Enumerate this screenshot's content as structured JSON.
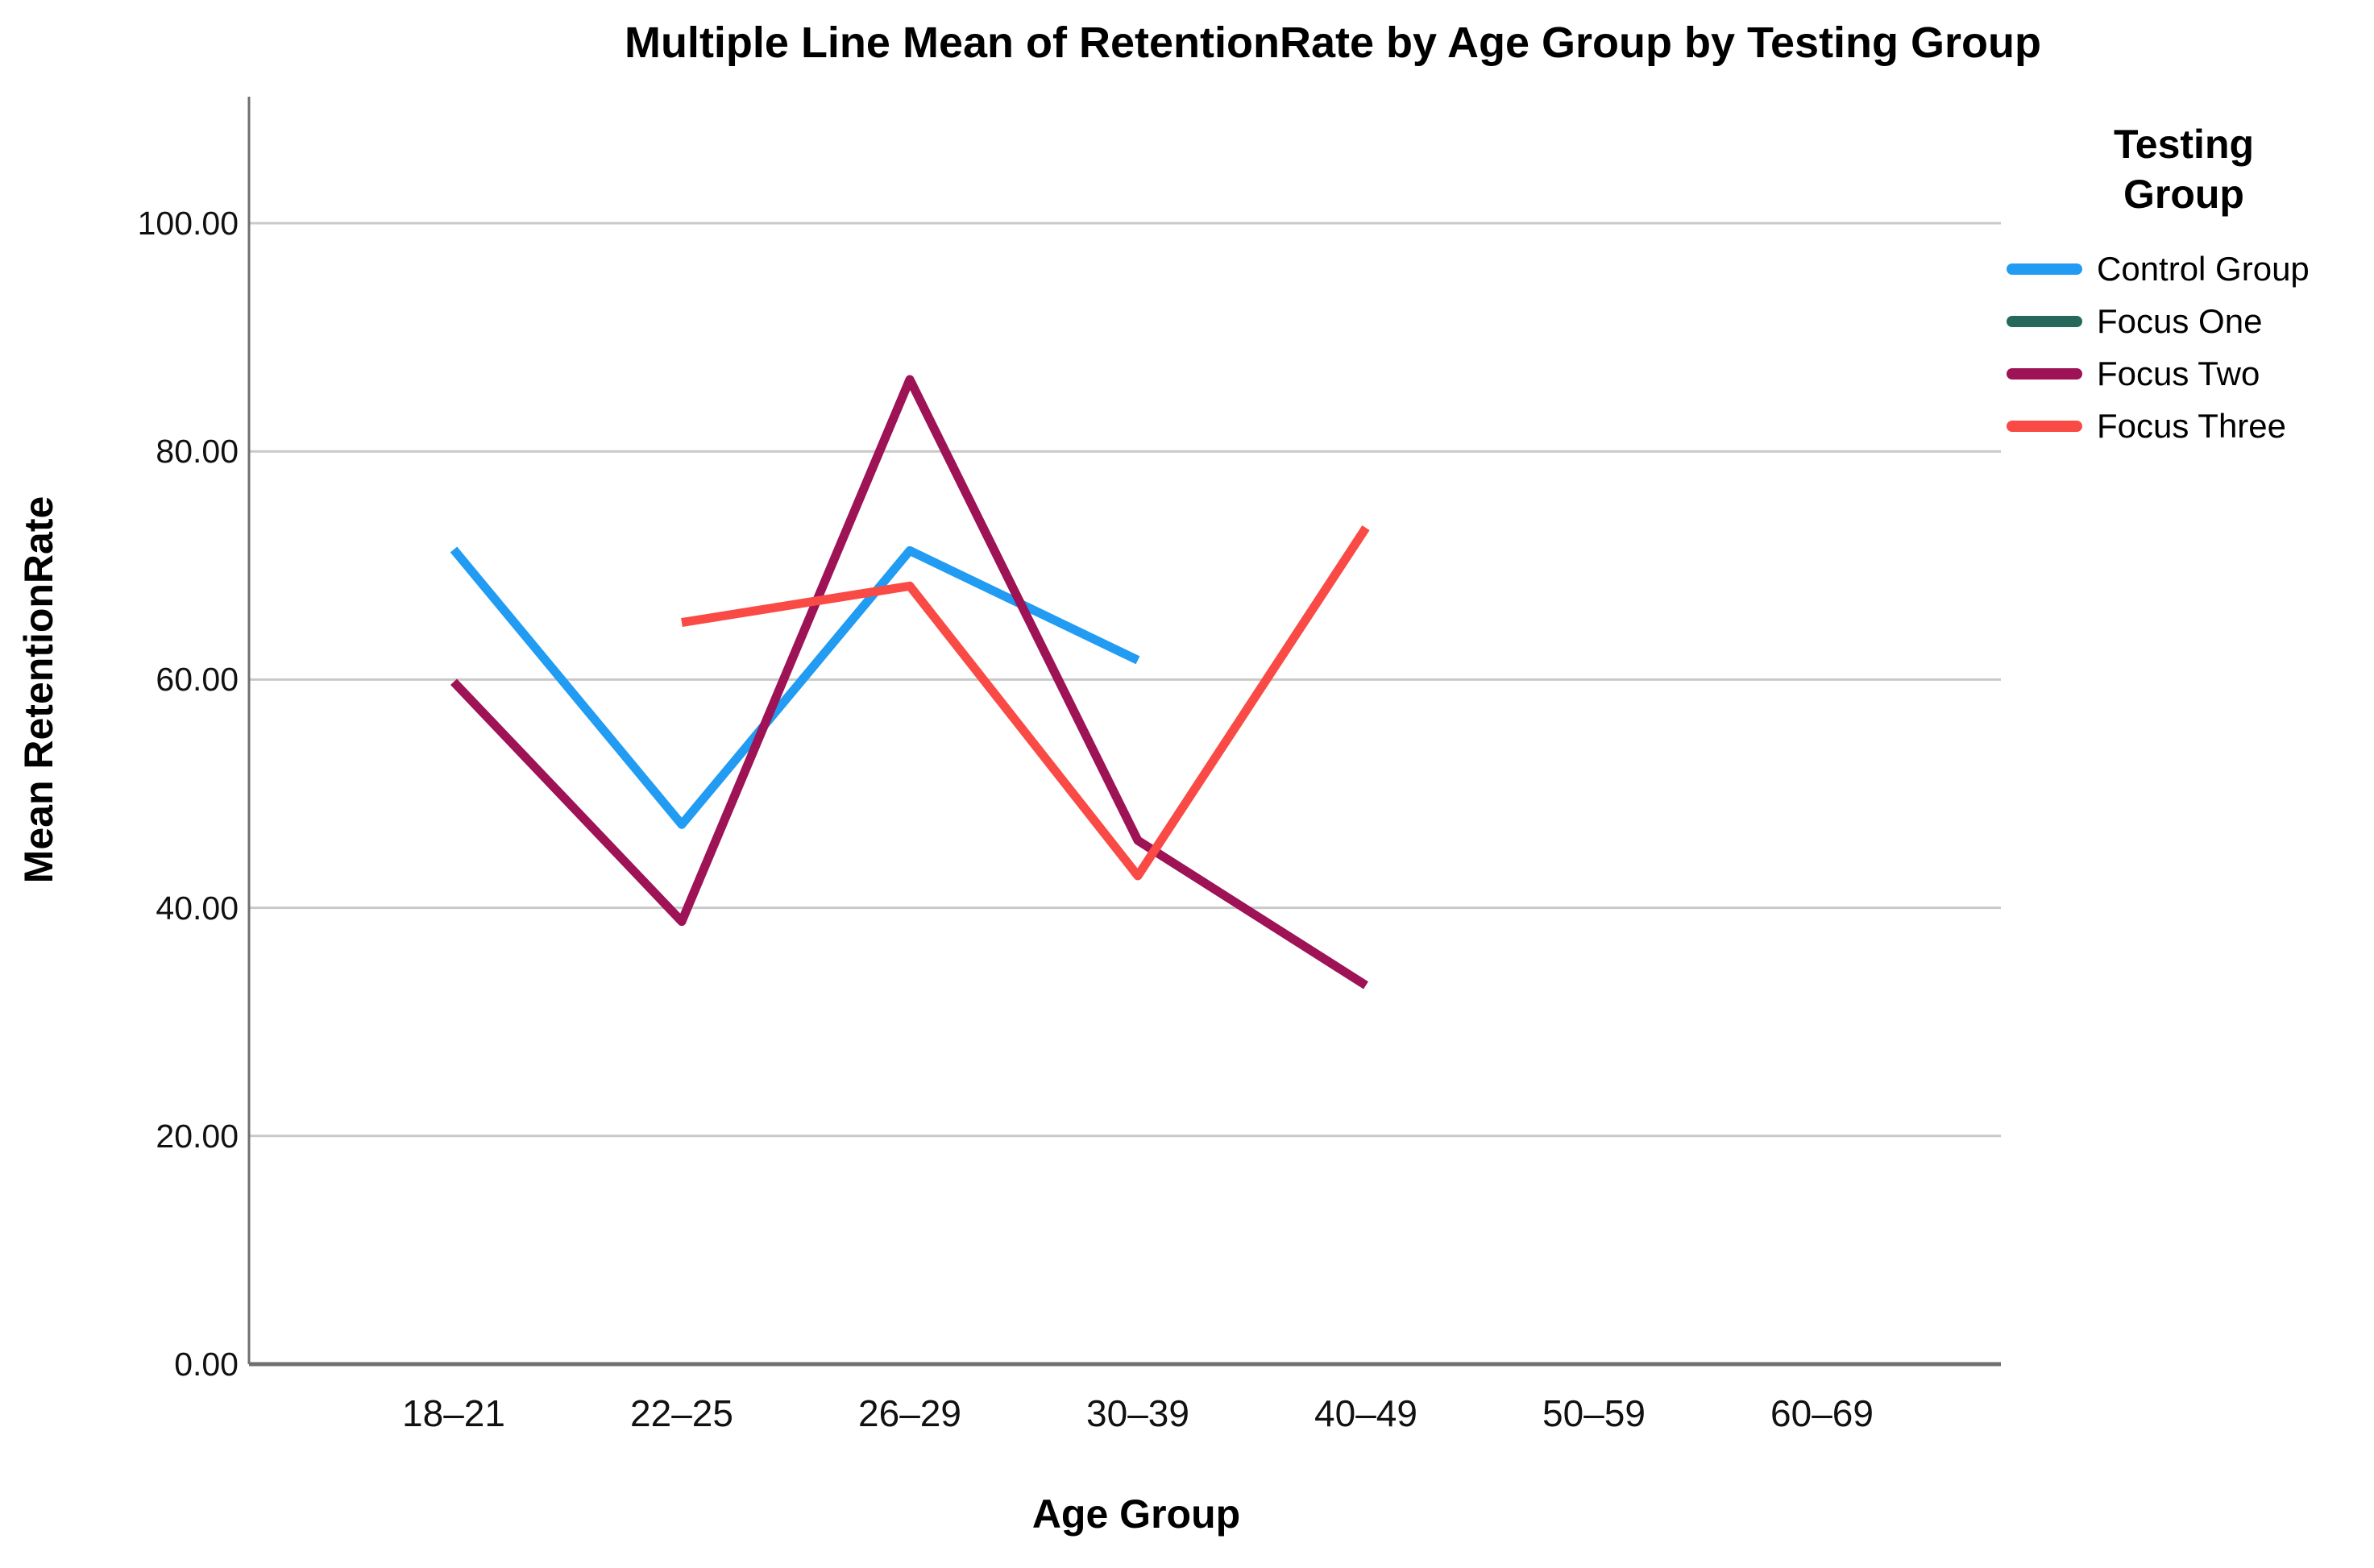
{
  "chart_data": {
    "type": "line",
    "title": "Multiple Line Mean of RetentionRate by Age Group by Testing Group",
    "xlabel": "Age Group",
    "ylabel": "Mean RetentionRate",
    "categories": [
      "18–21",
      "22–25",
      "26–29",
      "30–39",
      "40–49",
      "50–59",
      "60–69"
    ],
    "y_ticks": [
      "0.00",
      "20.00",
      "40.00",
      "60.00",
      "80.00",
      "100.00"
    ],
    "ylim": [
      0,
      111
    ],
    "grid": true,
    "legend_title": "Testing Group",
    "legend_position": "right",
    "series": [
      {
        "name": "Control Group",
        "color": "#219CF2",
        "values": [
          71.4,
          47.3,
          71.3,
          61.7,
          null,
          null,
          null
        ]
      },
      {
        "name": "Focus One",
        "color": "#26695C",
        "values": [
          null,
          null,
          null,
          null,
          null,
          null,
          null
        ]
      },
      {
        "name": "Focus Two",
        "color": "#9E1256",
        "values": [
          59.8,
          38.8,
          86.3,
          45.9,
          33.2,
          null,
          null
        ]
      },
      {
        "name": "Focus Three",
        "color": "#FA4A46",
        "values": [
          null,
          65.0,
          68.2,
          42.8,
          73.3,
          null,
          null
        ]
      }
    ]
  },
  "colors": {
    "background": "#FFFFFF",
    "gridline": "#C9C9C9",
    "axis": "#6F6F6F",
    "text": "#000000"
  }
}
